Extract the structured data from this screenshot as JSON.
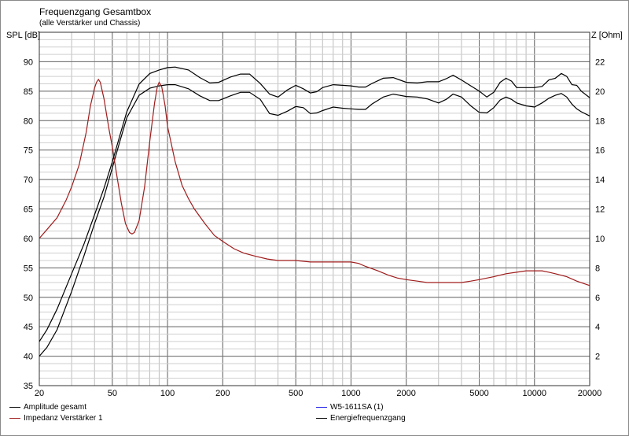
{
  "chart_data": {
    "type": "line",
    "title": "Frequenzgang Gesamtbox",
    "subtitle": "(alle Verstärker und Chassis)",
    "y_left_label": "SPL [dB]",
    "y_right_label": "Z [Ohm]",
    "x_scale": "log",
    "xlim": [
      20,
      20000
    ],
    "ylim_left": [
      35,
      95
    ],
    "ylim_right": [
      0,
      24
    ],
    "x_ticks": [
      20,
      50,
      100,
      200,
      500,
      1000,
      2000,
      5000,
      10000,
      20000
    ],
    "x_tick_labels": [
      "20",
      "50",
      "100",
      "200",
      "500",
      "1000",
      "2000",
      "5000",
      "10000",
      "20000"
    ],
    "y_left_ticks": [
      35,
      40,
      45,
      50,
      55,
      60,
      65,
      70,
      75,
      80,
      85,
      90
    ],
    "y_right_ticks": [
      2,
      4,
      6,
      8,
      10,
      12,
      14,
      16,
      18,
      20,
      22
    ],
    "grid": true,
    "series": [
      {
        "name": "Amplitude gesamt",
        "axis": "left",
        "color": "#000000",
        "points": [
          [
            20,
            40.0
          ],
          [
            22,
            41.5
          ],
          [
            25,
            44.5
          ],
          [
            30,
            51
          ],
          [
            35,
            57
          ],
          [
            40,
            62.5
          ],
          [
            45,
            67
          ],
          [
            50,
            72
          ],
          [
            55,
            76.5
          ],
          [
            60,
            80.5
          ],
          [
            70,
            84.3
          ],
          [
            80,
            85.5
          ],
          [
            90,
            85.9
          ],
          [
            100,
            86.1
          ],
          [
            110,
            86.1
          ],
          [
            130,
            85.4
          ],
          [
            150,
            84.2
          ],
          [
            170,
            83.4
          ],
          [
            190,
            83.4
          ],
          [
            220,
            84.2
          ],
          [
            250,
            84.8
          ],
          [
            280,
            84.8
          ],
          [
            320,
            83.6
          ],
          [
            360,
            81.2
          ],
          [
            400,
            80.9
          ],
          [
            450,
            81.6
          ],
          [
            500,
            82.4
          ],
          [
            550,
            82.2
          ],
          [
            600,
            81.2
          ],
          [
            650,
            81.3
          ],
          [
            700,
            81.7
          ],
          [
            800,
            82.3
          ],
          [
            900,
            82.1
          ],
          [
            1000,
            82.0
          ],
          [
            1100,
            81.9
          ],
          [
            1200,
            81.9
          ],
          [
            1300,
            82.8
          ],
          [
            1500,
            84.0
          ],
          [
            1700,
            84.5
          ],
          [
            2000,
            84.1
          ],
          [
            2300,
            84.0
          ],
          [
            2600,
            83.7
          ],
          [
            3000,
            83.0
          ],
          [
            3300,
            83.6
          ],
          [
            3600,
            84.5
          ],
          [
            4000,
            84.0
          ],
          [
            4500,
            82.5
          ],
          [
            5000,
            81.4
          ],
          [
            5500,
            81.3
          ],
          [
            6000,
            82.2
          ],
          [
            6500,
            83.5
          ],
          [
            7000,
            84.0
          ],
          [
            7500,
            83.6
          ],
          [
            8000,
            83.0
          ],
          [
            9000,
            82.5
          ],
          [
            10000,
            82.3
          ],
          [
            11000,
            83.0
          ],
          [
            12000,
            83.8
          ],
          [
            13000,
            84.3
          ],
          [
            14000,
            84.6
          ],
          [
            15000,
            84.0
          ],
          [
            16000,
            82.8
          ],
          [
            17000,
            82.0
          ],
          [
            18000,
            81.5
          ],
          [
            20000,
            80.8
          ]
        ]
      },
      {
        "name": "Impedanz Verstärker 1",
        "axis": "right",
        "color": "#a01c1c",
        "points": [
          [
            20,
            10.0
          ],
          [
            22,
            10.6
          ],
          [
            25,
            11.4
          ],
          [
            28,
            12.6
          ],
          [
            30,
            13.5
          ],
          [
            33,
            15.0
          ],
          [
            36,
            17.2
          ],
          [
            38,
            19.0
          ],
          [
            40,
            20.2
          ],
          [
            41,
            20.6
          ],
          [
            42,
            20.8
          ],
          [
            43,
            20.6
          ],
          [
            45,
            19.5
          ],
          [
            48,
            17.4
          ],
          [
            50,
            16.2
          ],
          [
            53,
            14.2
          ],
          [
            56,
            12.4
          ],
          [
            59,
            11.0
          ],
          [
            62,
            10.4
          ],
          [
            64,
            10.3
          ],
          [
            66,
            10.4
          ],
          [
            70,
            11.2
          ],
          [
            75,
            13.5
          ],
          [
            80,
            16.6
          ],
          [
            85,
            19.2
          ],
          [
            88,
            20.3
          ],
          [
            90,
            20.6
          ],
          [
            93,
            20.3
          ],
          [
            97,
            19.0
          ],
          [
            100,
            17.6
          ],
          [
            105,
            16.4
          ],
          [
            110,
            15.2
          ],
          [
            120,
            13.6
          ],
          [
            130,
            12.7
          ],
          [
            140,
            12.0
          ],
          [
            160,
            11.0
          ],
          [
            180,
            10.2
          ],
          [
            200,
            9.8
          ],
          [
            230,
            9.3
          ],
          [
            260,
            9.0
          ],
          [
            300,
            8.8
          ],
          [
            350,
            8.6
          ],
          [
            400,
            8.5
          ],
          [
            500,
            8.5
          ],
          [
            600,
            8.4
          ],
          [
            700,
            8.4
          ],
          [
            800,
            8.4
          ],
          [
            1000,
            8.4
          ],
          [
            1100,
            8.3
          ],
          [
            1200,
            8.1
          ],
          [
            1400,
            7.8
          ],
          [
            1600,
            7.5
          ],
          [
            1800,
            7.3
          ],
          [
            2000,
            7.2
          ],
          [
            2300,
            7.1
          ],
          [
            2600,
            7.0
          ],
          [
            3000,
            7.0
          ],
          [
            3500,
            7.0
          ],
          [
            4000,
            7.0
          ],
          [
            4500,
            7.1
          ],
          [
            5000,
            7.2
          ],
          [
            6000,
            7.4
          ],
          [
            7000,
            7.6
          ],
          [
            8000,
            7.7
          ],
          [
            9000,
            7.8
          ],
          [
            10000,
            7.8
          ],
          [
            11000,
            7.8
          ],
          [
            12000,
            7.7
          ],
          [
            13000,
            7.6
          ],
          [
            15000,
            7.4
          ],
          [
            17000,
            7.1
          ],
          [
            20000,
            6.8
          ]
        ]
      },
      {
        "name": "W5-1611SA (1)",
        "axis": "left",
        "color": "#1a1ae6",
        "points": []
      },
      {
        "name": "Energiefrequenzgang",
        "axis": "left",
        "color": "#000000",
        "points": [
          [
            20,
            42.5
          ],
          [
            22,
            44.5
          ],
          [
            25,
            48
          ],
          [
            30,
            54
          ],
          [
            35,
            59
          ],
          [
            40,
            64
          ],
          [
            45,
            68.5
          ],
          [
            50,
            73
          ],
          [
            55,
            77.5
          ],
          [
            60,
            81.5
          ],
          [
            70,
            86.2
          ],
          [
            80,
            88.0
          ],
          [
            90,
            88.6
          ],
          [
            100,
            89.0
          ],
          [
            110,
            89.1
          ],
          [
            130,
            88.6
          ],
          [
            150,
            87.3
          ],
          [
            170,
            86.4
          ],
          [
            190,
            86.5
          ],
          [
            220,
            87.4
          ],
          [
            250,
            87.9
          ],
          [
            280,
            87.9
          ],
          [
            320,
            86.3
          ],
          [
            360,
            84.5
          ],
          [
            400,
            84.0
          ],
          [
            450,
            85.2
          ],
          [
            500,
            86.0
          ],
          [
            550,
            85.4
          ],
          [
            600,
            84.7
          ],
          [
            650,
            84.9
          ],
          [
            700,
            85.6
          ],
          [
            800,
            86.1
          ],
          [
            900,
            86.0
          ],
          [
            1000,
            85.9
          ],
          [
            1100,
            85.7
          ],
          [
            1200,
            85.7
          ],
          [
            1300,
            86.3
          ],
          [
            1500,
            87.2
          ],
          [
            1700,
            87.3
          ],
          [
            2000,
            86.5
          ],
          [
            2300,
            86.4
          ],
          [
            2600,
            86.6
          ],
          [
            3000,
            86.6
          ],
          [
            3300,
            87.1
          ],
          [
            3600,
            87.7
          ],
          [
            4000,
            86.9
          ],
          [
            4500,
            85.9
          ],
          [
            5000,
            85.0
          ],
          [
            5500,
            84.0
          ],
          [
            6000,
            84.8
          ],
          [
            6500,
            86.5
          ],
          [
            7000,
            87.2
          ],
          [
            7500,
            86.7
          ],
          [
            8000,
            85.6
          ],
          [
            9000,
            85.6
          ],
          [
            10000,
            85.6
          ],
          [
            11000,
            85.8
          ],
          [
            12000,
            86.9
          ],
          [
            13000,
            87.2
          ],
          [
            14000,
            88.0
          ],
          [
            15000,
            87.5
          ],
          [
            16000,
            86.1
          ],
          [
            17000,
            86.0
          ],
          [
            18000,
            85.0
          ],
          [
            20000,
            83.9
          ]
        ]
      }
    ]
  }
}
